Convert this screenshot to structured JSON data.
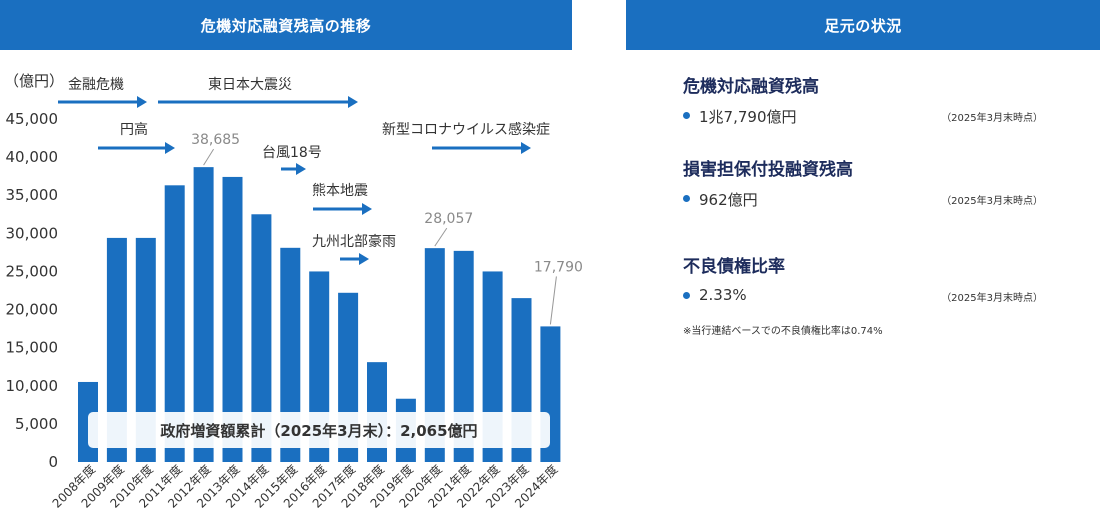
{
  "left_header": "危機対応融資残高の推移",
  "right_header": "足元の状況",
  "chart_data": {
    "type": "bar",
    "title": "危機対応融資残高の推移",
    "ylabel": "（億円）",
    "ylim": [
      0,
      45000
    ],
    "yticks": [
      0,
      5000,
      10000,
      15000,
      20000,
      25000,
      30000,
      35000,
      40000,
      45000
    ],
    "ytick_labels": [
      "0",
      "5,000",
      "10,000",
      "15,000",
      "20,000",
      "25,000",
      "30,000",
      "35,000",
      "40,000",
      "45,000"
    ],
    "categories": [
      "2008年度",
      "2009年度",
      "2010年度",
      "2011年度",
      "2012年度",
      "2013年度",
      "2014年度",
      "2015年度",
      "2016年度",
      "2017年度",
      "2018年度",
      "2019年度",
      "2020年度",
      "2021年度",
      "2022年度",
      "2023年度",
      "2024年度"
    ],
    "values": [
      10500,
      29400,
      29400,
      36300,
      38685,
      37400,
      32500,
      28100,
      25000,
      22200,
      13100,
      8300,
      28057,
      27700,
      25000,
      21500,
      17790
    ],
    "bar_color": "#1a6fc0",
    "value_labels": [
      {
        "category": "2012年度",
        "text": "38,685"
      },
      {
        "category": "2020年度",
        "text": "28,057"
      },
      {
        "category": "2024年度",
        "text": "17,790"
      }
    ],
    "events": [
      {
        "label": "金融危機"
      },
      {
        "label": "東日本大震災"
      },
      {
        "label": "円高"
      },
      {
        "label": "台風18号"
      },
      {
        "label": "熊本地震"
      },
      {
        "label": "九州北部豪雨"
      },
      {
        "label": "新型コロナウイルス感染症"
      }
    ],
    "event_arrow_color": "#1a6fc0",
    "annotation": "政府増資額累計（2025年3月末）：2,065億円"
  },
  "status": [
    {
      "title": "危機対応融資残高",
      "value": "1兆7,790億円",
      "note": "（2025年3月末時点）"
    },
    {
      "title": "損害担保付投融資残高",
      "value": "962億円",
      "note": "（2025年3月末時点）"
    },
    {
      "title": "不良債権比率",
      "value": "2.33%",
      "note": "（2025年3月末時点）"
    }
  ],
  "footnote": "※当行連結ベースでの不良債権比率は0.74%"
}
